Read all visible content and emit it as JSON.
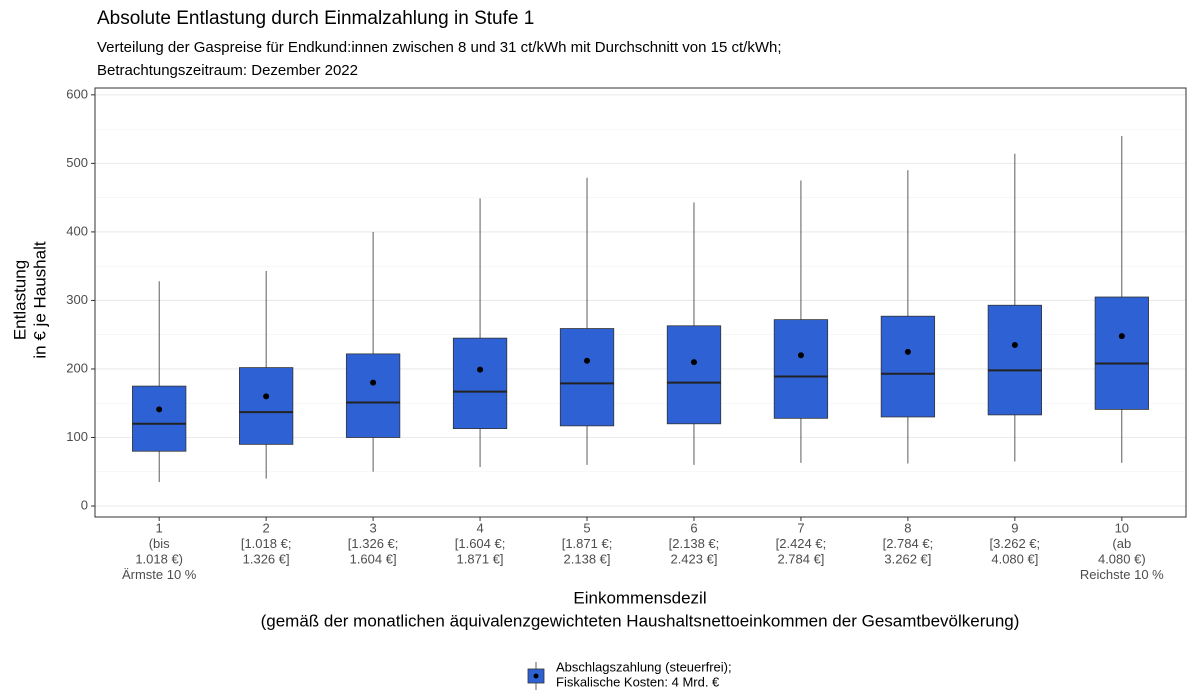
{
  "chart_data": {
    "type": "boxplot",
    "title": "Absolute Entlastung durch Einmalzahlung in Stufe 1",
    "subtitle": [
      "Verteilung der Gaspreise für Endkund:innen zwischen 8 und 31 ct/kWh mit Durchschnitt von 15 ct/kWh;",
      "Betrachtungszeitraum: Dezember 2022"
    ],
    "y_label": [
      "Entlastung",
      "in € je Haushalt"
    ],
    "x_label": [
      "Einkommensdezil",
      "(gemäß der monatlichen äquivalenzgewichteten Haushaltsnettoeinkommen der Gesamtbevölkerung)"
    ],
    "categories": [
      [
        "1",
        "(bis",
        "1.018 €)",
        "Ärmste 10 %"
      ],
      [
        "2",
        "[1.018 €;",
        "1.326 €]"
      ],
      [
        "3",
        "[1.326 €;",
        "1.604 €]"
      ],
      [
        "4",
        "[1.604 €;",
        "1.871 €]"
      ],
      [
        "5",
        "[1.871 €;",
        "2.138 €]"
      ],
      [
        "6",
        "[2.138 €;",
        "2.423 €]"
      ],
      [
        "7",
        "[2.424 €;",
        "2.784 €]"
      ],
      [
        "8",
        "[2.784 €;",
        "3.262 €]"
      ],
      [
        "9",
        "[3.262 €;",
        "4.080 €]"
      ],
      [
        "10",
        "(ab",
        "4.080 €)",
        "Reichste 10 %"
      ]
    ],
    "series": [
      {
        "name": [
          "Abschlagszahlung (steuerfrei);",
          "Fiskalische Kosten: 4 Mrd. €"
        ],
        "color": "#2e62d4",
        "whislo": [
          35,
          40,
          50,
          57,
          60,
          60,
          63,
          62,
          65,
          63
        ],
        "q1": [
          80,
          90,
          100,
          113,
          117,
          120,
          128,
          130,
          133,
          141
        ],
        "median": [
          120,
          137,
          151,
          167,
          179,
          180,
          189,
          193,
          198,
          208
        ],
        "q3": [
          175,
          202,
          222,
          245,
          259,
          263,
          272,
          277,
          293,
          305
        ],
        "whishi": [
          328,
          343,
          400,
          449,
          479,
          443,
          475,
          490,
          514,
          540
        ],
        "mean": [
          141,
          160,
          180,
          199,
          212,
          210,
          220,
          225,
          235,
          248
        ]
      }
    ],
    "ylim": [
      -16,
      610
    ],
    "yticks": [
      0,
      100,
      200,
      300,
      400,
      500,
      600
    ],
    "grid": true,
    "minor_grid": true,
    "legend": "bottom"
  }
}
